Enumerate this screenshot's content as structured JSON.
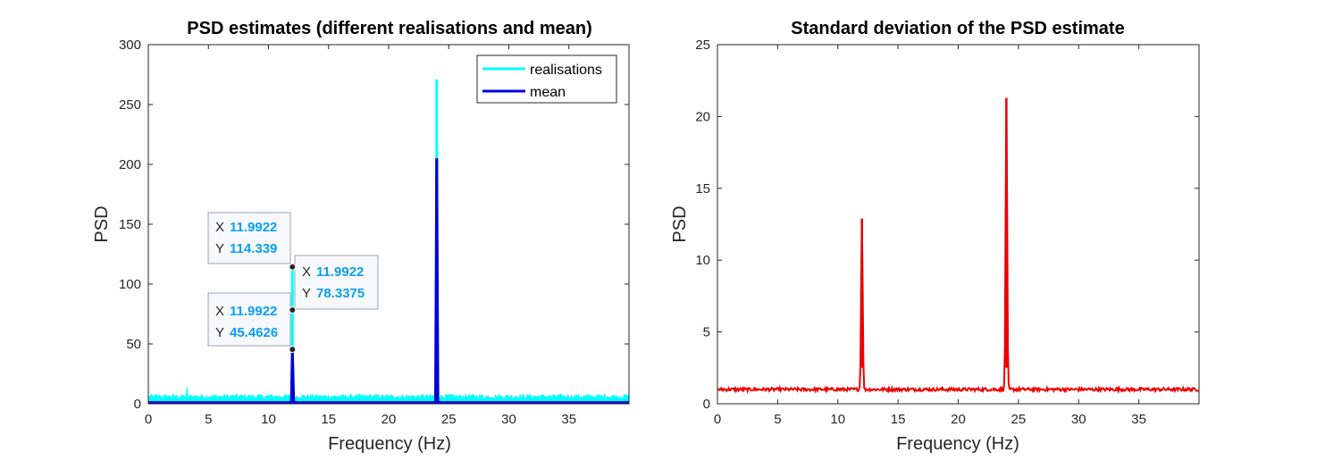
{
  "chart_data": [
    {
      "type": "line",
      "title": "PSD estimates (different realisations and mean)",
      "xlabel": "Frequency (Hz)",
      "ylabel": "PSD",
      "xlim": [
        0,
        40
      ],
      "ylim": [
        0,
        300
      ],
      "x_ticks": [
        "0",
        "5",
        "10",
        "15",
        "20",
        "25",
        "30",
        "35"
      ],
      "y_ticks": [
        "0",
        "50",
        "100",
        "150",
        "200",
        "250",
        "300"
      ],
      "grid": false,
      "legend_position": "top-right",
      "series": [
        {
          "name": "realisations",
          "color": "#00ffff",
          "noise_floor_max": 8,
          "x": [
            0,
            3.2,
            11.99,
            11.99,
            12.1,
            23.9,
            24.0,
            24.1,
            40
          ],
          "y": [
            5,
            14,
            5,
            114.339,
            5,
            5,
            271,
            5,
            5
          ]
        },
        {
          "name": "mean",
          "color": "#0000dd",
          "x": [
            0,
            11.9,
            11.99,
            12.1,
            23.9,
            24.0,
            24.1,
            40
          ],
          "y": [
            1,
            1,
            45.4626,
            1,
            1,
            205,
            1,
            1
          ]
        }
      ],
      "datatips": [
        {
          "x_label": "X",
          "y_label": "Y",
          "x": "11.9922",
          "y": "114.339",
          "yv": 114.339
        },
        {
          "x_label": "X",
          "y_label": "Y",
          "x": "11.9922",
          "y": "78.3375",
          "yv": 78.3375
        },
        {
          "x_label": "X",
          "y_label": "Y",
          "x": "11.9922",
          "y": "45.4626",
          "yv": 45.4626
        }
      ]
    },
    {
      "type": "line",
      "title": "Standard deviation of the PSD estimate",
      "xlabel": "Frequency (Hz)",
      "ylabel": "PSD",
      "xlim": [
        0,
        40
      ],
      "ylim": [
        0,
        25
      ],
      "x_ticks": [
        "0",
        "5",
        "10",
        "15",
        "20",
        "25",
        "30",
        "35"
      ],
      "y_ticks": [
        "0",
        "5",
        "10",
        "15",
        "20",
        "25"
      ],
      "grid": false,
      "series": [
        {
          "color": "#ee0000",
          "baseline": 1.0,
          "peaks": [
            {
              "x": 12.0,
              "y": 12.9
            },
            {
              "x": 24.0,
              "y": 21.3
            }
          ]
        }
      ]
    }
  ]
}
